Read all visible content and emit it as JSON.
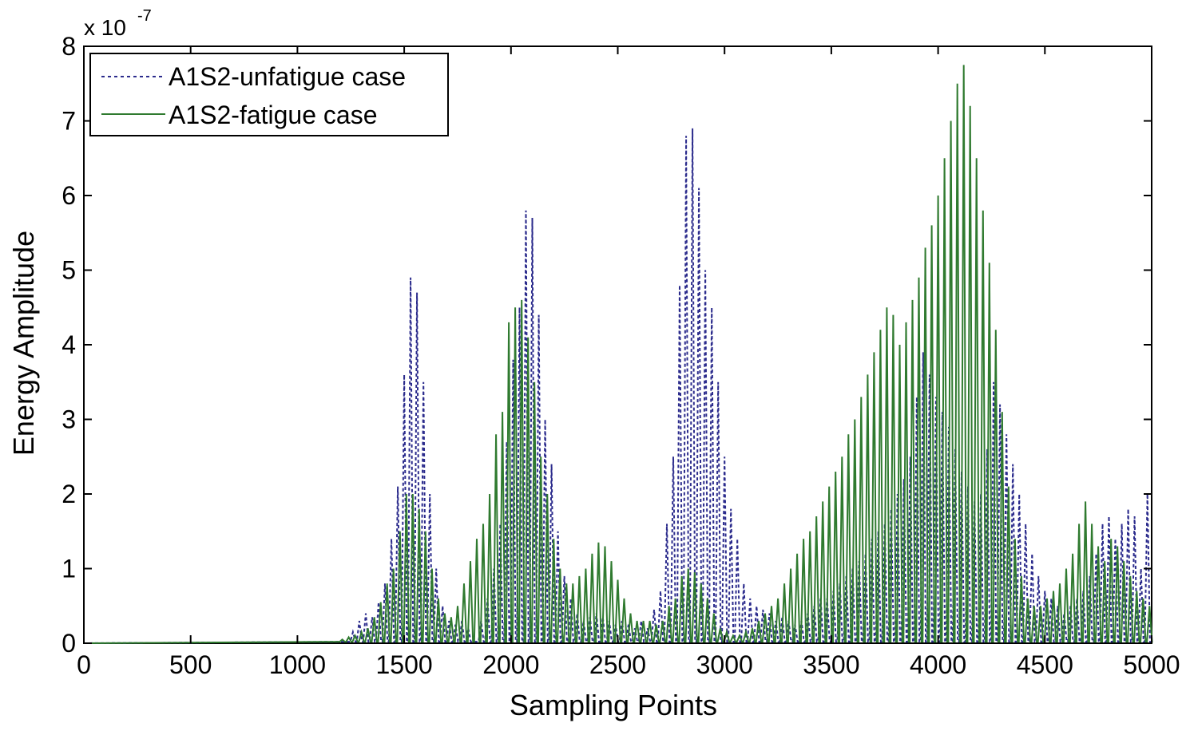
{
  "chart_data": {
    "type": "line",
    "title": "",
    "xlabel": "Sampling Points",
    "ylabel": "Energy Amplitude",
    "exponent_label": "x 10",
    "exponent_power": "-7",
    "xlim": [
      0,
      5000
    ],
    "ylim": [
      0,
      8
    ],
    "xticks": [
      "0",
      "500",
      "1000",
      "1500",
      "2000",
      "2500",
      "3000",
      "3500",
      "4000",
      "4500",
      "5000"
    ],
    "yticks": [
      "0",
      "1",
      "2",
      "3",
      "4",
      "5",
      "6",
      "7",
      "8"
    ],
    "grid": false,
    "legend_position": "top-left",
    "series": [
      {
        "name": "A1S2-unfatigue case",
        "color": "#2b2b8c",
        "style": "dotted",
        "peaks": [
          [
            1260,
            0.15
          ],
          [
            1290,
            0.3
          ],
          [
            1320,
            0.4
          ],
          [
            1350,
            0.35
          ],
          [
            1380,
            0.55
          ],
          [
            1410,
            0.8
          ],
          [
            1440,
            1.4
          ],
          [
            1470,
            2.1
          ],
          [
            1500,
            3.6
          ],
          [
            1530,
            4.9
          ],
          [
            1560,
            4.7
          ],
          [
            1590,
            3.5
          ],
          [
            1620,
            2.0
          ],
          [
            1650,
            1.0
          ],
          [
            1680,
            0.5
          ],
          [
            1710,
            0.3
          ],
          [
            1740,
            0.25
          ],
          [
            1770,
            0.3
          ],
          [
            1800,
            0.2
          ],
          [
            1860,
            0.3
          ],
          [
            1890,
            0.6
          ],
          [
            1920,
            1.0
          ],
          [
            1950,
            1.6
          ],
          [
            1980,
            2.7
          ],
          [
            2010,
            3.8
          ],
          [
            2040,
            4.5
          ],
          [
            2070,
            5.8
          ],
          [
            2100,
            5.7
          ],
          [
            2130,
            4.4
          ],
          [
            2160,
            3.0
          ],
          [
            2190,
            2.4
          ],
          [
            2220,
            1.5
          ],
          [
            2250,
            0.9
          ],
          [
            2280,
            0.6
          ],
          [
            2310,
            0.4
          ],
          [
            2340,
            0.3
          ],
          [
            2370,
            0.35
          ],
          [
            2400,
            0.4
          ],
          [
            2430,
            0.35
          ],
          [
            2460,
            0.3
          ],
          [
            2490,
            0.25
          ],
          [
            2520,
            0.3
          ],
          [
            2550,
            0.25
          ],
          [
            2580,
            0.2
          ],
          [
            2610,
            0.3
          ],
          [
            2640,
            0.2
          ],
          [
            2670,
            0.45
          ],
          [
            2700,
            0.7
          ],
          [
            2730,
            1.6
          ],
          [
            2760,
            2.5
          ],
          [
            2790,
            4.8
          ],
          [
            2820,
            6.8
          ],
          [
            2850,
            6.9
          ],
          [
            2880,
            6.1
          ],
          [
            2910,
            5.0
          ],
          [
            2940,
            4.5
          ],
          [
            2970,
            3.5
          ],
          [
            3000,
            2.5
          ],
          [
            3030,
            1.8
          ],
          [
            3060,
            1.4
          ],
          [
            3090,
            0.8
          ],
          [
            3120,
            0.6
          ],
          [
            3150,
            0.5
          ],
          [
            3180,
            0.45
          ],
          [
            3210,
            0.4
          ],
          [
            3240,
            0.3
          ],
          [
            3270,
            0.35
          ],
          [
            3300,
            0.3
          ],
          [
            3330,
            0.25
          ],
          [
            3360,
            0.3
          ],
          [
            3390,
            0.4
          ],
          [
            3420,
            0.5
          ],
          [
            3450,
            0.6
          ],
          [
            3480,
            0.6
          ],
          [
            3510,
            0.7
          ],
          [
            3540,
            0.8
          ],
          [
            3570,
            0.9
          ],
          [
            3600,
            1.0
          ],
          [
            3630,
            1.1
          ],
          [
            3660,
            1.2
          ],
          [
            3690,
            1.4
          ],
          [
            3720,
            1.5
          ],
          [
            3750,
            1.6
          ],
          [
            3780,
            1.8
          ],
          [
            3810,
            2.0
          ],
          [
            3840,
            2.2
          ],
          [
            3870,
            2.5
          ],
          [
            3900,
            3.3
          ],
          [
            3930,
            3.9
          ],
          [
            3960,
            3.6
          ],
          [
            3990,
            3.3
          ],
          [
            4020,
            3.1
          ],
          [
            4050,
            2.9
          ],
          [
            4080,
            2.6
          ],
          [
            4110,
            2.3
          ],
          [
            4140,
            2.1
          ],
          [
            4170,
            1.9
          ],
          [
            4200,
            2.0
          ],
          [
            4230,
            2.6
          ],
          [
            4260,
            3.5
          ],
          [
            4290,
            3.2
          ],
          [
            4320,
            2.8
          ],
          [
            4350,
            2.4
          ],
          [
            4380,
            2.0
          ],
          [
            4410,
            1.6
          ],
          [
            4440,
            1.2
          ],
          [
            4470,
            0.9
          ],
          [
            4500,
            0.7
          ],
          [
            4530,
            0.6
          ],
          [
            4560,
            0.5
          ],
          [
            4590,
            0.4
          ],
          [
            4620,
            0.5
          ],
          [
            4650,
            0.6
          ],
          [
            4680,
            0.7
          ],
          [
            4710,
            0.9
          ],
          [
            4740,
            1.2
          ],
          [
            4770,
            1.6
          ],
          [
            4800,
            1.7
          ],
          [
            4830,
            1.4
          ],
          [
            4860,
            1.6
          ],
          [
            4890,
            1.8
          ],
          [
            4920,
            1.7
          ],
          [
            4950,
            1.0
          ],
          [
            4980,
            2.0
          ]
        ]
      },
      {
        "name": "A1S2-fatigue case",
        "color": "#2f7a2f",
        "style": "solid",
        "peaks": [
          [
            1210,
            0.05
          ],
          [
            1240,
            0.08
          ],
          [
            1270,
            0.1
          ],
          [
            1300,
            0.15
          ],
          [
            1330,
            0.2
          ],
          [
            1360,
            0.35
          ],
          [
            1390,
            0.55
          ],
          [
            1420,
            0.8
          ],
          [
            1450,
            1.0
          ],
          [
            1480,
            1.5
          ],
          [
            1510,
            2.0
          ],
          [
            1540,
            2.0
          ],
          [
            1570,
            1.8
          ],
          [
            1600,
            1.5
          ],
          [
            1630,
            1.0
          ],
          [
            1660,
            0.6
          ],
          [
            1690,
            0.4
          ],
          [
            1720,
            0.35
          ],
          [
            1750,
            0.5
          ],
          [
            1780,
            0.8
          ],
          [
            1810,
            1.1
          ],
          [
            1840,
            1.4
          ],
          [
            1870,
            1.6
          ],
          [
            1900,
            2.0
          ],
          [
            1930,
            2.8
          ],
          [
            1960,
            3.1
          ],
          [
            1990,
            4.3
          ],
          [
            2020,
            4.5
          ],
          [
            2050,
            4.6
          ],
          [
            2080,
            4.1
          ],
          [
            2110,
            3.5
          ],
          [
            2140,
            2.5
          ],
          [
            2170,
            2.0
          ],
          [
            2200,
            1.4
          ],
          [
            2230,
            1.0
          ],
          [
            2260,
            0.8
          ],
          [
            2290,
            0.8
          ],
          [
            2320,
            0.9
          ],
          [
            2350,
            1.0
          ],
          [
            2380,
            1.2
          ],
          [
            2410,
            1.35
          ],
          [
            2440,
            1.3
          ],
          [
            2470,
            1.1
          ],
          [
            2500,
            0.85
          ],
          [
            2530,
            0.6
          ],
          [
            2560,
            0.4
          ],
          [
            2590,
            0.3
          ],
          [
            2620,
            0.3
          ],
          [
            2650,
            0.3
          ],
          [
            2680,
            0.25
          ],
          [
            2710,
            0.3
          ],
          [
            2740,
            0.5
          ],
          [
            2770,
            0.6
          ],
          [
            2800,
            0.9
          ],
          [
            2830,
            1.0
          ],
          [
            2860,
            0.95
          ],
          [
            2890,
            0.8
          ],
          [
            2920,
            0.6
          ],
          [
            2950,
            0.4
          ],
          [
            2980,
            0.2
          ],
          [
            3010,
            0.15
          ],
          [
            3040,
            0.1
          ],
          [
            3070,
            0.1
          ],
          [
            3100,
            0.15
          ],
          [
            3130,
            0.2
          ],
          [
            3160,
            0.3
          ],
          [
            3190,
            0.4
          ],
          [
            3220,
            0.5
          ],
          [
            3250,
            0.6
          ],
          [
            3280,
            0.8
          ],
          [
            3310,
            1.0
          ],
          [
            3340,
            1.2
          ],
          [
            3370,
            1.4
          ],
          [
            3400,
            1.5
          ],
          [
            3430,
            1.7
          ],
          [
            3460,
            1.9
          ],
          [
            3490,
            2.1
          ],
          [
            3520,
            2.3
          ],
          [
            3550,
            2.5
          ],
          [
            3580,
            2.8
          ],
          [
            3610,
            3.0
          ],
          [
            3640,
            3.3
          ],
          [
            3670,
            3.6
          ],
          [
            3700,
            3.9
          ],
          [
            3730,
            4.2
          ],
          [
            3760,
            4.5
          ],
          [
            3790,
            4.4
          ],
          [
            3820,
            4.0
          ],
          [
            3850,
            4.3
          ],
          [
            3880,
            4.6
          ],
          [
            3910,
            4.9
          ],
          [
            3940,
            5.3
          ],
          [
            3970,
            5.6
          ],
          [
            4000,
            6.0
          ],
          [
            4030,
            6.5
          ],
          [
            4060,
            7.0
          ],
          [
            4090,
            7.5
          ],
          [
            4120,
            7.75
          ],
          [
            4150,
            7.2
          ],
          [
            4180,
            6.5
          ],
          [
            4210,
            5.8
          ],
          [
            4240,
            5.1
          ],
          [
            4270,
            4.2
          ],
          [
            4300,
            3.1
          ],
          [
            4330,
            2.1
          ],
          [
            4360,
            1.4
          ],
          [
            4390,
            0.9
          ],
          [
            4420,
            0.6
          ],
          [
            4450,
            0.5
          ],
          [
            4480,
            0.5
          ],
          [
            4510,
            0.6
          ],
          [
            4540,
            0.7
          ],
          [
            4570,
            0.8
          ],
          [
            4600,
            1.0
          ],
          [
            4630,
            1.2
          ],
          [
            4660,
            1.6
          ],
          [
            4690,
            1.9
          ],
          [
            4720,
            1.6
          ],
          [
            4750,
            1.3
          ],
          [
            4780,
            1.1
          ],
          [
            4810,
            1.4
          ],
          [
            4840,
            1.3
          ],
          [
            4870,
            1.1
          ],
          [
            4900,
            0.9
          ],
          [
            4930,
            0.7
          ],
          [
            4960,
            0.6
          ],
          [
            4990,
            0.5
          ]
        ]
      }
    ]
  }
}
